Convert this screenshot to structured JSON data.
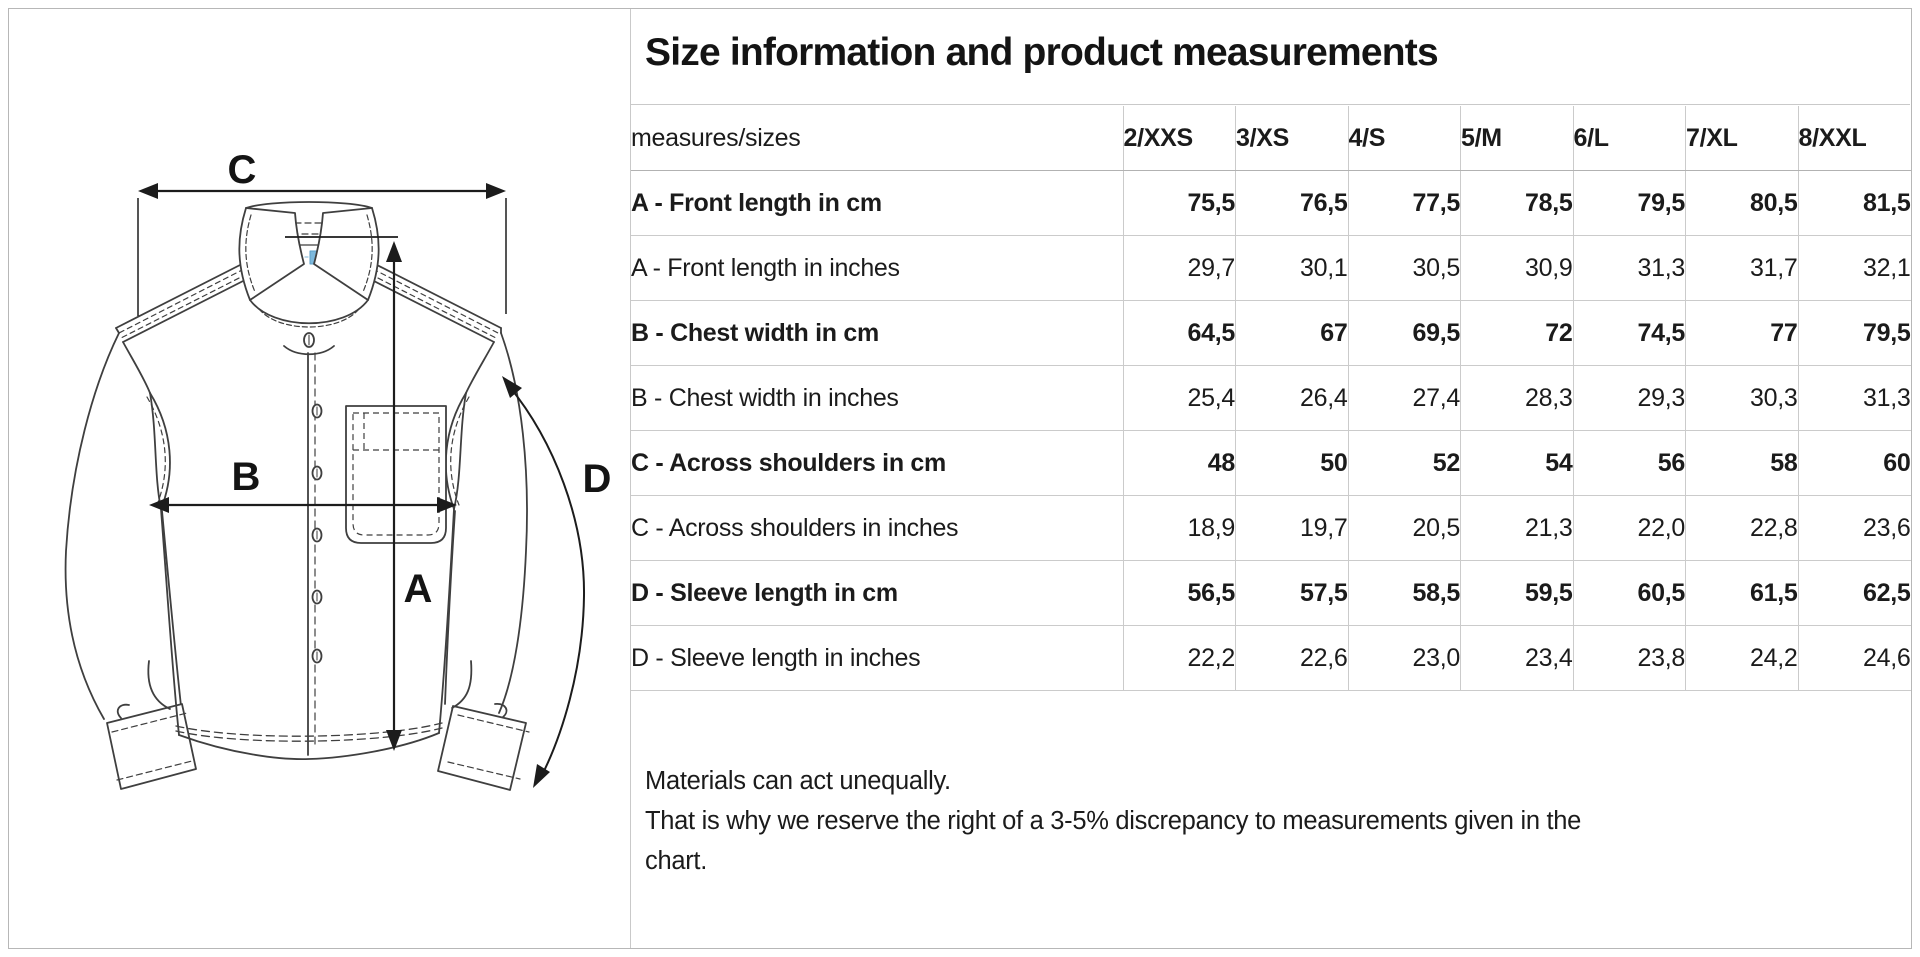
{
  "title": "Size information and product measurements",
  "table": {
    "header_label": "measures/sizes",
    "sizes": [
      "2/XXS",
      "3/XS",
      "4/S",
      "5/M",
      "6/L",
      "7/XL",
      "8/XXL"
    ],
    "rows": [
      {
        "label": "A - Front length in cm",
        "bold": true,
        "values": [
          "75,5",
          "76,5",
          "77,5",
          "78,5",
          "79,5",
          "80,5",
          "81,5"
        ]
      },
      {
        "label": "A - Front length in inches",
        "bold": false,
        "values": [
          "29,7",
          "30,1",
          "30,5",
          "30,9",
          "31,3",
          "31,7",
          "32,1"
        ]
      },
      {
        "label": "B - Chest width in cm",
        "bold": true,
        "values": [
          "64,5",
          "67",
          "69,5",
          "72",
          "74,5",
          "77",
          "79,5"
        ]
      },
      {
        "label": "B - Chest width in inches",
        "bold": false,
        "values": [
          "25,4",
          "26,4",
          "27,4",
          "28,3",
          "29,3",
          "30,3",
          "31,3"
        ]
      },
      {
        "label": "C - Across shoulders in cm",
        "bold": true,
        "values": [
          "48",
          "50",
          "52",
          "54",
          "56",
          "58",
          "60"
        ]
      },
      {
        "label": "C - Across shoulders in inches",
        "bold": false,
        "values": [
          "18,9",
          "19,7",
          "20,5",
          "21,3",
          "22,0",
          "22,8",
          "23,6"
        ]
      },
      {
        "label": "D - Sleeve length in cm",
        "bold": true,
        "values": [
          "56,5",
          "57,5",
          "58,5",
          "59,5",
          "60,5",
          "61,5",
          "62,5"
        ]
      },
      {
        "label": "D - Sleeve length in inches",
        "bold": false,
        "values": [
          "22,2",
          "22,6",
          "23,0",
          "23,4",
          "23,8",
          "24,2",
          "24,6"
        ]
      }
    ]
  },
  "footnote_lines": [
    "Materials can act unequally.",
    "That is why we reserve the right of a 3-5% discrepancy to measurements given in the",
    "chart."
  ],
  "diagram": {
    "labels": {
      "A": "A",
      "B": "B",
      "C": "C",
      "D": "D"
    },
    "line_color": "#3f3f3f",
    "dimension_color": "#1c1c1c",
    "tag_color": "#7db9dd"
  }
}
